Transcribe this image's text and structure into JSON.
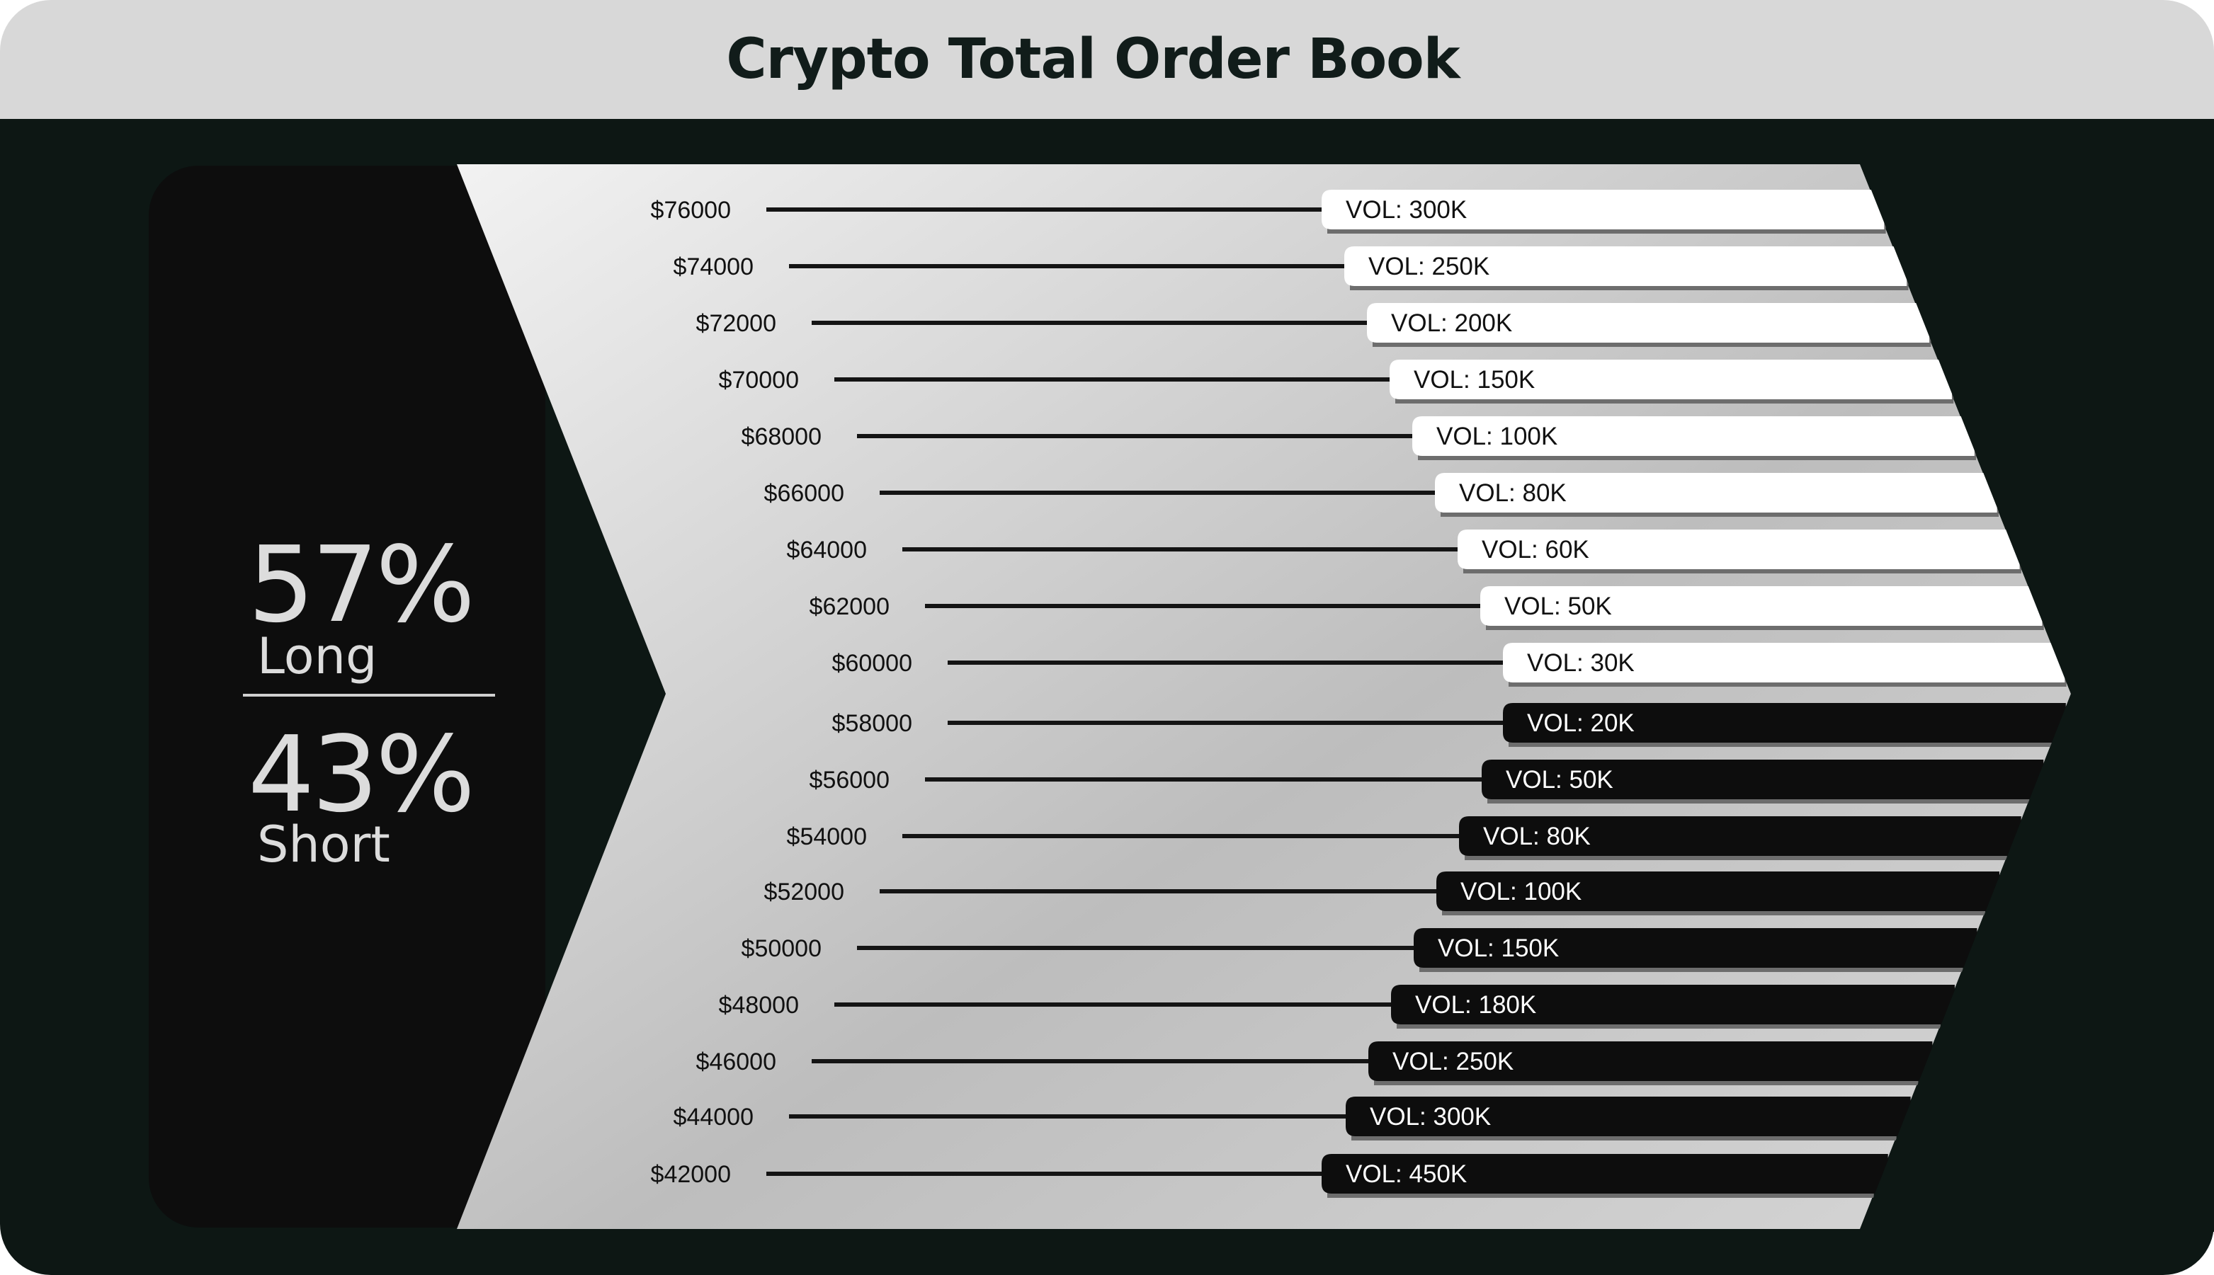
{
  "title": "Crypto Total Order Book",
  "sentiment": {
    "long_percent": "57%",
    "long_label": "Long",
    "short_percent": "43%",
    "short_label": "Short"
  },
  "chart_data": {
    "type": "bar",
    "orientation": "horizontal",
    "title": "Crypto Total Order Book",
    "value_prefix": "VOL:",
    "series": [
      {
        "levels": [
          {
            "price": "$76000",
            "volume": "300K",
            "value": 300000
          },
          {
            "price": "$74000",
            "volume": "250K",
            "value": 250000
          },
          {
            "price": "$72000",
            "volume": "200K",
            "value": 200000
          },
          {
            "price": "$70000",
            "volume": "150K",
            "value": 150000
          },
          {
            "price": "$68000",
            "volume": "100K",
            "value": 100000
          },
          {
            "price": "$66000",
            "volume": "80K",
            "value": 80000
          },
          {
            "price": "$64000",
            "volume": "60K",
            "value": 60000
          },
          {
            "price": "$62000",
            "volume": "50K",
            "value": 50000
          },
          {
            "price": "$60000",
            "volume": "30K",
            "value": 30000
          }
        ]
      },
      {
        "levels": [
          {
            "price": "$58000",
            "volume": "20K",
            "value": 20000
          },
          {
            "price": "$56000",
            "volume": "50K",
            "value": 50000
          },
          {
            "price": "$54000",
            "volume": "80K",
            "value": 80000
          },
          {
            "price": "$52000",
            "volume": "100K",
            "value": 100000
          },
          {
            "price": "$50000",
            "volume": "150K",
            "value": 150000
          },
          {
            "price": "$48000",
            "volume": "180K",
            "value": 180000
          },
          {
            "price": "$46000",
            "volume": "250K",
            "value": 250000
          },
          {
            "price": "$44000",
            "volume": "300K",
            "value": 300000
          },
          {
            "price": "$42000",
            "volume": "450K",
            "value": 450000
          }
        ]
      }
    ]
  },
  "colors": {
    "header_bg": "#d8d8d8",
    "panel_bg": "#0d1714",
    "long_bar": "#ffffff",
    "short_bar": "#0d0d0d",
    "stat_text": "#dcdcdc"
  }
}
